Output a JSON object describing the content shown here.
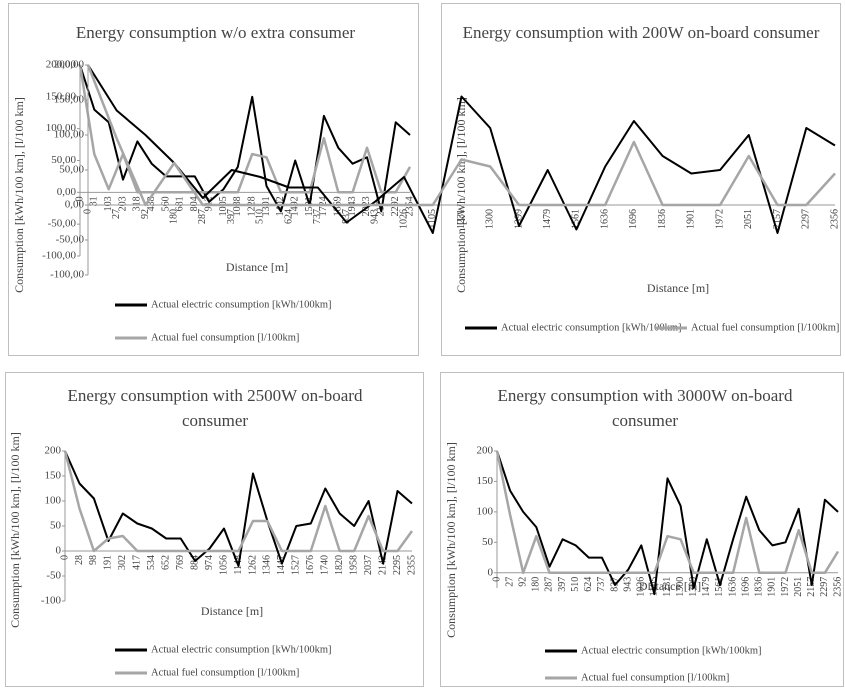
{
  "chart_data": [
    {
      "type": "line",
      "title": "Energy consumption w/o extra consumer",
      "x_label": "Distance [m]",
      "y_label": "Consumption [kWh/100 km], [l/100 km]",
      "categories": [
        "0",
        "31",
        "103",
        "203",
        "318",
        "438",
        "560",
        "681",
        "804",
        "912",
        "1005",
        "1088",
        "1228",
        "1301",
        "1402",
        "1492",
        "1591",
        "1724",
        "1869",
        "1943",
        "2023",
        "2173",
        "2292",
        "2354"
      ],
      "series": [
        {
          "name": "Actual electric consumption [kWh/100km]",
          "color": "#000000",
          "values": [
            200,
            130,
            110,
            20,
            80,
            45,
            25,
            25,
            25,
            -15,
            5,
            40,
            150,
            10,
            -30,
            50,
            -20,
            120,
            70,
            45,
            55,
            -30,
            110,
            90
          ]
        },
        {
          "name": "Actual fuel consumption [l/100km]",
          "color": "#a6a6a6",
          "values": [
            200,
            60,
            5,
            60,
            0,
            0,
            0,
            0,
            0,
            0,
            0,
            0,
            60,
            55,
            0,
            0,
            0,
            85,
            0,
            0,
            70,
            0,
            0,
            40
          ]
        }
      ],
      "ylim": [
        -100,
        200
      ],
      "yticks": [
        {
          "value": 200,
          "label": "200,00"
        },
        {
          "value": 150,
          "label": "150,00"
        },
        {
          "value": 100,
          "label": "100,00"
        },
        {
          "value": 50,
          "label": "50,00"
        },
        {
          "value": 0,
          "label": "0,00"
        },
        {
          "value": -50,
          "label": "-50,00"
        },
        {
          "value": -100,
          "label": "-100,00"
        }
      ],
      "legend": "bottom"
    },
    {
      "type": "line",
      "title": "Energy consumption with 200W on-board consumer",
      "x_label": "Distance [m]",
      "y_label": "Consumption [kWh/100 km], [l/100 km]",
      "categories": [
        "0",
        "27",
        "92",
        "180",
        "287",
        "397",
        "510",
        "624",
        "737",
        "837",
        "943",
        "1026",
        "1105",
        "1231",
        "1300",
        "1399",
        "1479",
        "1561",
        "1636",
        "1696",
        "1836",
        "1901",
        "1972",
        "2051",
        "2157",
        "2297",
        "2356"
      ],
      "series": [
        {
          "name": "Actual electric consumption [kWh/100km]",
          "color": "#000000",
          "values": [
            200,
            135,
            100,
            60,
            10,
            50,
            40,
            25,
            25,
            -25,
            5,
            40,
            -40,
            155,
            110,
            -30,
            50,
            -35,
            55,
            120,
            70,
            45,
            50,
            100,
            -40,
            110,
            85
          ]
        },
        {
          "name": "Actual fuel consumption [l/100km]",
          "color": "#a6a6a6",
          "values": [
            200,
            95,
            0,
            60,
            0,
            0,
            0,
            0,
            0,
            0,
            0,
            0,
            0,
            65,
            55,
            0,
            0,
            0,
            0,
            90,
            0,
            0,
            0,
            70,
            0,
            0,
            45
          ]
        }
      ],
      "ylim": [
        -100,
        200
      ],
      "yticks": [
        {
          "value": 200,
          "label": "200,00"
        },
        {
          "value": 150,
          "label": "150,00"
        },
        {
          "value": 100,
          "label": "100,00"
        },
        {
          "value": 50,
          "label": "50,00"
        },
        {
          "value": 0,
          "label": "0,00"
        },
        {
          "value": -50,
          "label": "-50,00"
        },
        {
          "value": -100,
          "label": "-100,00"
        }
      ],
      "legend": "bottom"
    },
    {
      "type": "line",
      "title": "Energy consumption with 2500W on-board consumer",
      "x_label": "Distance [m]",
      "y_label": "Consumption [kWh/100 km], [l/100 km]",
      "categories": [
        "0",
        "28",
        "98",
        "191",
        "302",
        "417",
        "534",
        "652",
        "769",
        "884",
        "974",
        "1056",
        "1148",
        "1262",
        "1346",
        "1447",
        "1527",
        "1676",
        "1740",
        "1820",
        "1958",
        "2037",
        "2142",
        "2295",
        "2355"
      ],
      "series": [
        {
          "name": "Actual electric consumption [kWh/100km]",
          "color": "#000000",
          "values": [
            200,
            135,
            105,
            20,
            75,
            55,
            45,
            25,
            25,
            -20,
            5,
            45,
            -30,
            155,
            60,
            -25,
            50,
            55,
            125,
            75,
            50,
            100,
            -25,
            120,
            95
          ]
        },
        {
          "name": "Actual fuel consumption [l/100km]",
          "color": "#a6a6a6",
          "values": [
            200,
            85,
            0,
            25,
            30,
            0,
            0,
            0,
            0,
            0,
            0,
            0,
            0,
            60,
            60,
            0,
            0,
            0,
            90,
            0,
            0,
            70,
            0,
            0,
            40
          ]
        }
      ],
      "ylim": [
        -100,
        200
      ],
      "yticks": [
        200,
        150,
        100,
        50,
        0,
        -50,
        -100
      ],
      "legend": "bottom"
    },
    {
      "type": "line",
      "title": "Energy consumption with 3000W on-board consumer",
      "x_label": "Distance [m]",
      "y_label": "Consumption [kWh/100 km], [l/100 km]",
      "categories": [
        "0",
        "27",
        "92",
        "180",
        "287",
        "397",
        "510",
        "624",
        "737",
        "837",
        "943",
        "1026",
        "1105",
        "1231",
        "1300",
        "1399",
        "1479",
        "1561",
        "1636",
        "1696",
        "1836",
        "1901",
        "1972",
        "2051",
        "2157",
        "2297",
        "2356"
      ],
      "series": [
        {
          "name": "Actual electric consumption [kWh/100km]",
          "color": "#000000",
          "values": [
            200,
            135,
            100,
            75,
            10,
            55,
            45,
            25,
            25,
            -20,
            5,
            45,
            -35,
            155,
            110,
            -25,
            55,
            -20,
            55,
            125,
            70,
            45,
            50,
            105,
            -20,
            120,
            100
          ]
        },
        {
          "name": "Actual fuel consumption [l/100km]",
          "color": "#a6a6a6",
          "values": [
            200,
            95,
            0,
            60,
            0,
            0,
            0,
            0,
            0,
            0,
            0,
            0,
            0,
            60,
            55,
            0,
            0,
            0,
            0,
            90,
            0,
            0,
            0,
            70,
            0,
            0,
            35
          ]
        }
      ],
      "ylim": [
        -25,
        200
      ],
      "yticks": [
        200,
        150,
        100,
        50,
        0
      ],
      "legend": "bottom"
    }
  ]
}
